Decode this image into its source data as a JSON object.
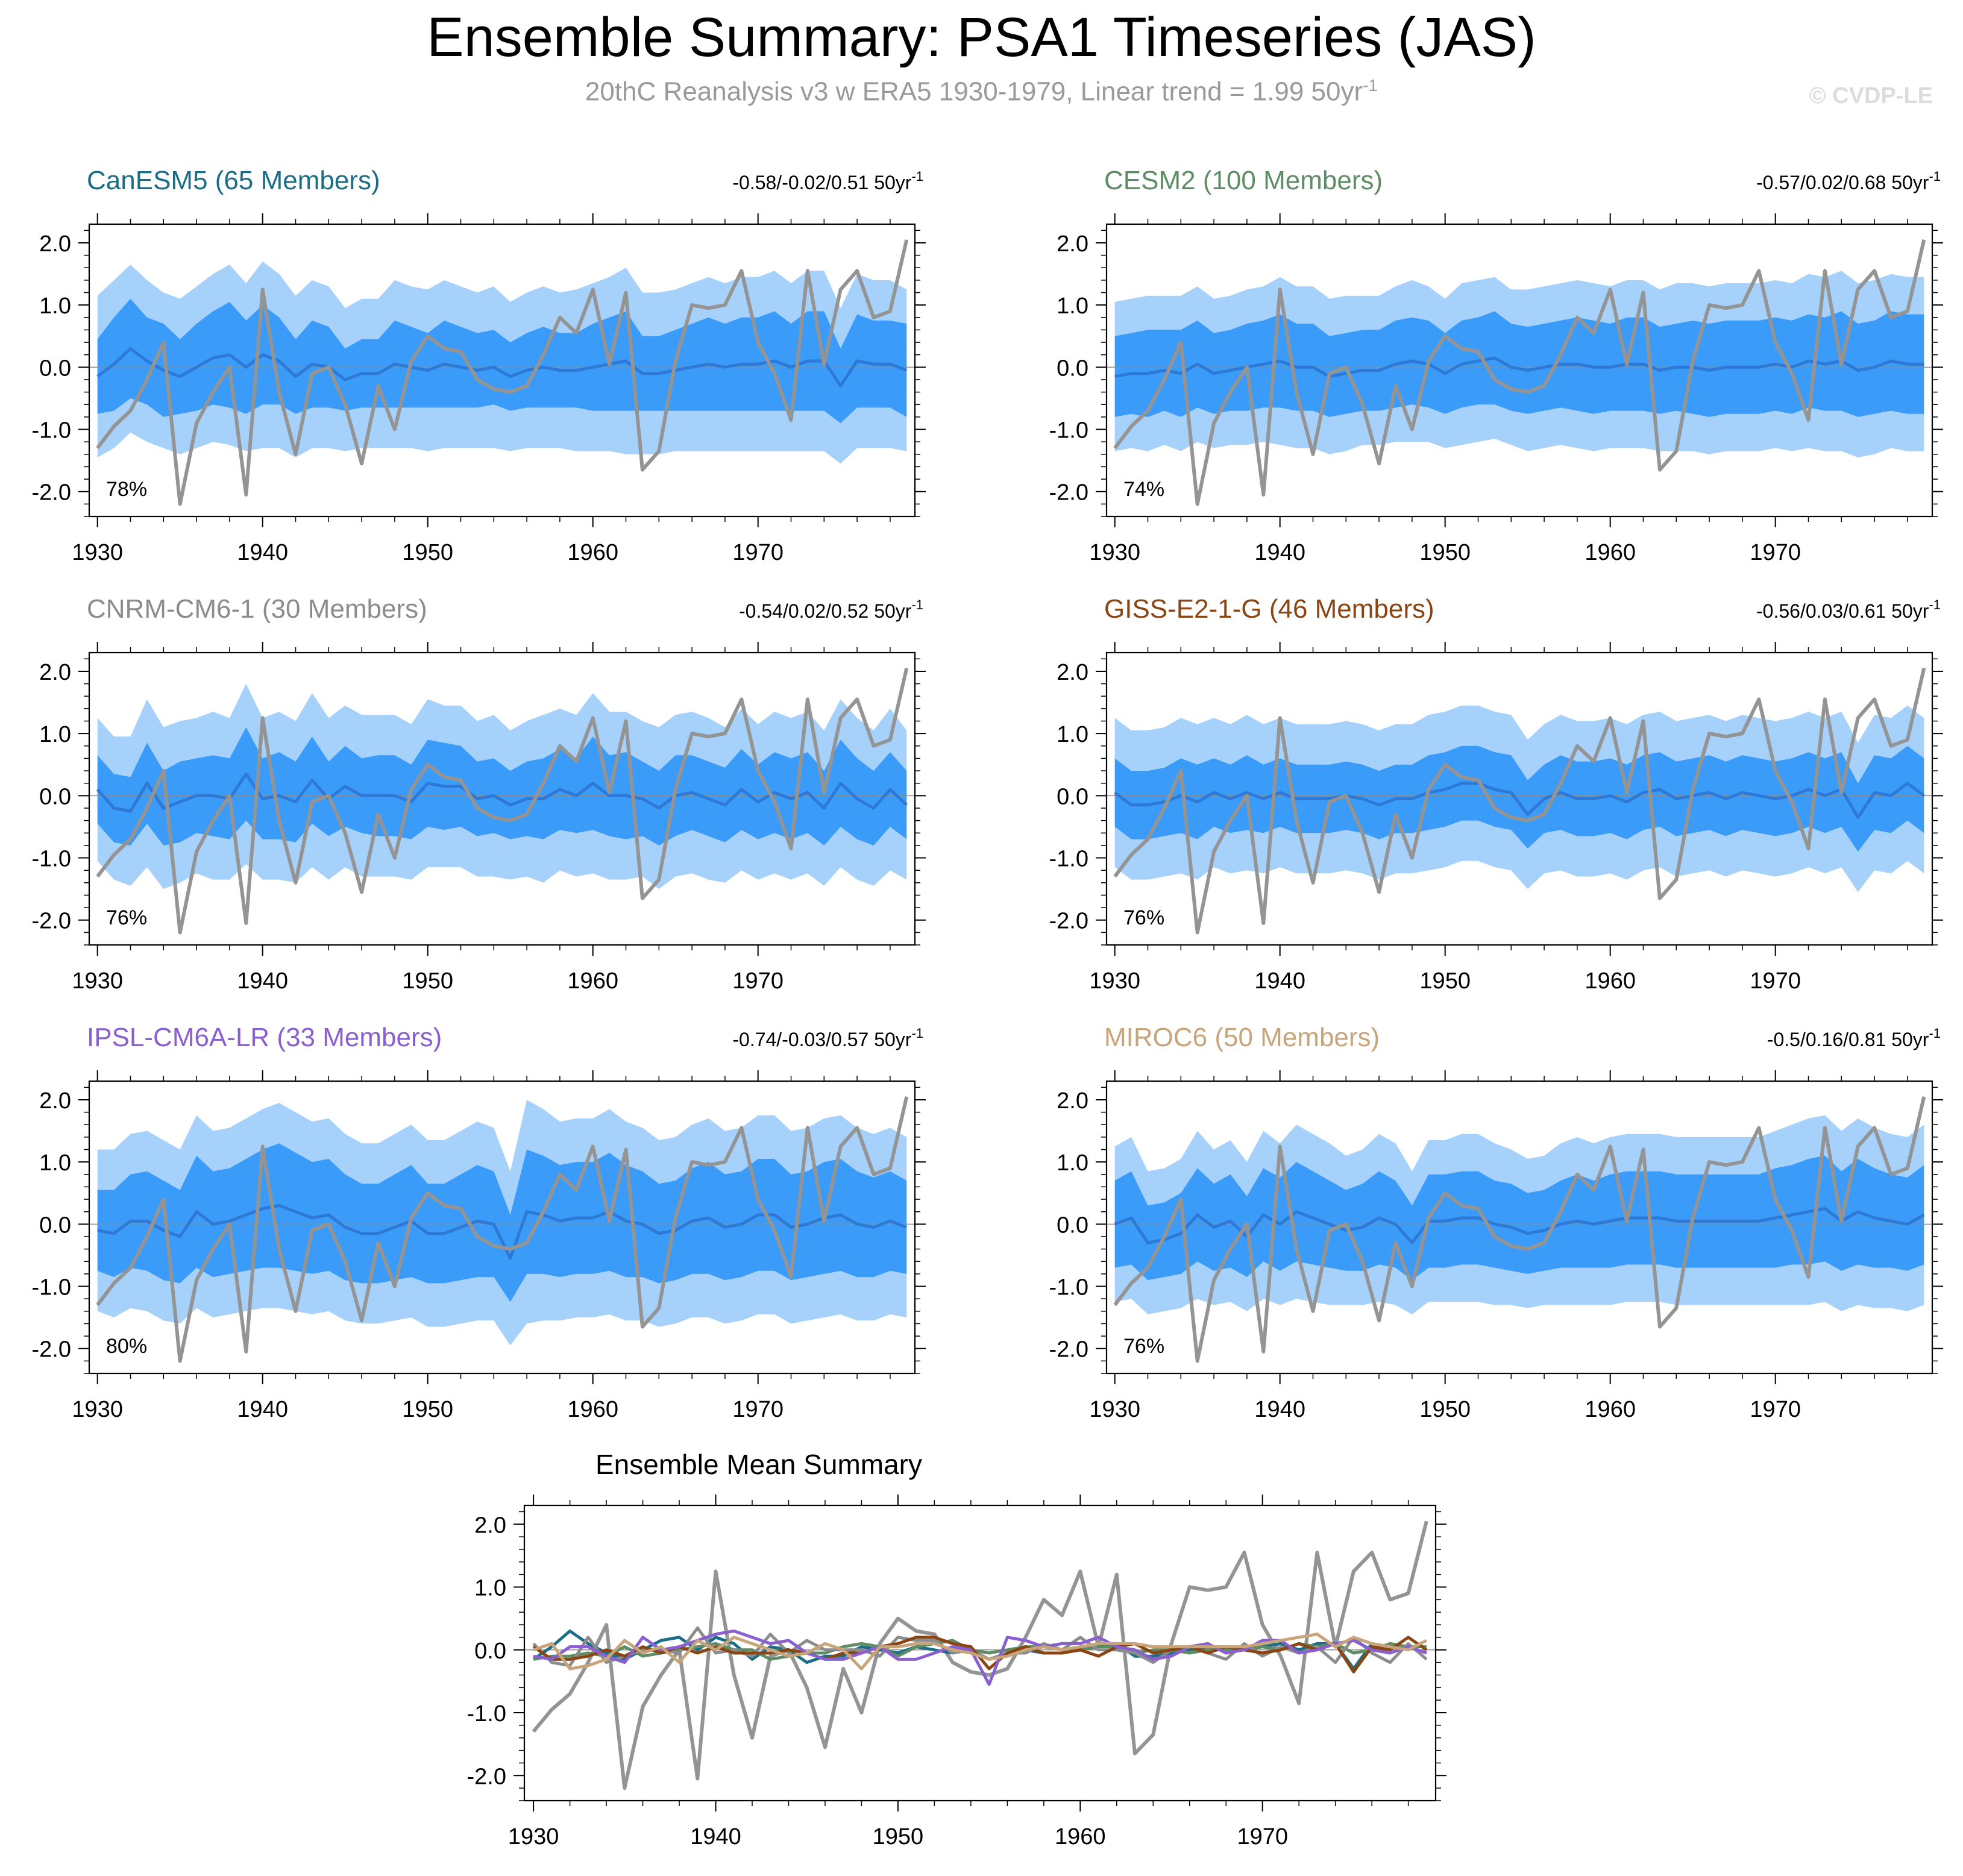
{
  "title": "Ensemble Summary: PSA1 Timeseries (JAS)",
  "subtitle_prefix": "20thC Reanalysis v3 w ERA5 1930-1979, Linear trend = 1.99 50yr",
  "subtitle_sup": "-1",
  "copyright": "© CVDP-LE",
  "colors": {
    "band_outer": "#a6d1fb",
    "band_inner": "#3a9bf8",
    "ens_mean": "#2e78d6",
    "observed": "#949494",
    "zero_line": "#8c8c8c"
  },
  "chart_data": {
    "type": "line",
    "x": [
      1930,
      1931,
      1932,
      1933,
      1934,
      1935,
      1936,
      1937,
      1938,
      1939,
      1940,
      1941,
      1942,
      1943,
      1944,
      1945,
      1946,
      1947,
      1948,
      1949,
      1950,
      1951,
      1952,
      1953,
      1954,
      1955,
      1956,
      1957,
      1958,
      1959,
      1960,
      1961,
      1962,
      1963,
      1964,
      1965,
      1966,
      1967,
      1968,
      1969,
      1970,
      1971,
      1972,
      1973,
      1974,
      1975,
      1976,
      1977,
      1978,
      1979
    ],
    "xlim": [
      1929.5,
      1979.5
    ],
    "ylim": [
      -2.4,
      2.3
    ],
    "xticks": [
      1930,
      1940,
      1950,
      1960,
      1970
    ],
    "xtick_labels": [
      "1930",
      "1940",
      "1950",
      "1960",
      "1970"
    ],
    "yticks": [
      -2,
      -1,
      0,
      1,
      2
    ],
    "ytick_labels": [
      "-2.0",
      "-1.0",
      "0.0",
      "1.0",
      "2.0"
    ],
    "observed": {
      "name": "20thC Reanalysis v3 w ERA5",
      "values": [
        -1.3,
        -0.95,
        -0.7,
        -0.2,
        0.4,
        -2.2,
        -0.9,
        -0.4,
        0.0,
        -2.05,
        1.25,
        -0.4,
        -1.4,
        -0.1,
        0.0,
        -0.6,
        -1.55,
        -0.3,
        -1.0,
        0.1,
        0.5,
        0.3,
        0.25,
        -0.2,
        -0.35,
        -0.4,
        -0.3,
        0.2,
        0.8,
        0.55,
        1.25,
        0.05,
        1.2,
        -1.65,
        -1.35,
        0.1,
        1.0,
        0.95,
        1.0,
        1.55,
        0.4,
        -0.1,
        -0.85,
        1.55,
        0.05,
        1.25,
        1.55,
        0.8,
        0.9,
        2.05
      ]
    },
    "panels": [
      {
        "name": "CanESM5 (65 Members)",
        "color": "#1c6e86",
        "trend": "-0.58/-0.02/0.51 50yr",
        "trend_sup": "-1",
        "pct": "78%",
        "mean": [
          -0.15,
          0.05,
          0.3,
          0.1,
          -0.05,
          -0.15,
          0.0,
          0.15,
          0.2,
          0.0,
          0.2,
          0.1,
          -0.15,
          0.05,
          0.0,
          -0.2,
          -0.1,
          -0.1,
          0.05,
          0.0,
          -0.05,
          0.05,
          0.0,
          -0.05,
          0.0,
          -0.15,
          -0.05,
          0.0,
          -0.05,
          -0.05,
          0.0,
          0.05,
          0.1,
          -0.1,
          -0.1,
          -0.05,
          0.0,
          0.05,
          0.0,
          0.05,
          0.05,
          0.1,
          0.0,
          0.1,
          0.1,
          -0.3,
          0.1,
          0.05,
          0.05,
          -0.05
        ],
        "inner": [
          0.6,
          0.75,
          0.8,
          0.7,
          0.75,
          0.6,
          0.7,
          0.75,
          0.85,
          0.75,
          0.8,
          0.7,
          0.6,
          0.7,
          0.65,
          0.5,
          0.55,
          0.55,
          0.7,
          0.65,
          0.6,
          0.7,
          0.65,
          0.6,
          0.6,
          0.55,
          0.6,
          0.65,
          0.6,
          0.6,
          0.7,
          0.75,
          0.8,
          0.6,
          0.6,
          0.65,
          0.7,
          0.75,
          0.7,
          0.75,
          0.75,
          0.8,
          0.7,
          0.8,
          0.8,
          0.6,
          0.75,
          0.7,
          0.7,
          0.75
        ],
        "outer": [
          1.3,
          1.35,
          1.35,
          1.3,
          1.25,
          1.25,
          1.3,
          1.35,
          1.45,
          1.35,
          1.5,
          1.4,
          1.3,
          1.35,
          1.3,
          1.15,
          1.2,
          1.2,
          1.35,
          1.3,
          1.3,
          1.35,
          1.3,
          1.25,
          1.3,
          1.2,
          1.25,
          1.3,
          1.25,
          1.3,
          1.35,
          1.4,
          1.5,
          1.3,
          1.3,
          1.3,
          1.35,
          1.4,
          1.35,
          1.4,
          1.4,
          1.45,
          1.35,
          1.45,
          1.45,
          1.25,
          1.4,
          1.35,
          1.35,
          1.3
        ]
      },
      {
        "name": "CESM2 (100 Members)",
        "color": "#5e8c64",
        "trend": "-0.57/0.02/0.68 50yr",
        "trend_sup": "-1",
        "pct": "74%",
        "mean": [
          -0.15,
          -0.1,
          -0.1,
          -0.05,
          -0.1,
          0.05,
          -0.1,
          -0.05,
          0.0,
          0.05,
          0.1,
          0.0,
          0.0,
          -0.15,
          -0.1,
          -0.05,
          -0.05,
          0.05,
          0.1,
          0.05,
          -0.1,
          0.05,
          0.1,
          0.15,
          0.0,
          -0.05,
          0.0,
          0.05,
          0.05,
          0.0,
          0.0,
          0.05,
          0.05,
          -0.05,
          0.0,
          0.0,
          -0.05,
          0.0,
          0.0,
          0.0,
          0.05,
          0.0,
          0.1,
          0.05,
          0.1,
          -0.05,
          0.0,
          0.1,
          0.05,
          0.05
        ],
        "inner": [
          0.65,
          0.65,
          0.7,
          0.65,
          0.7,
          0.7,
          0.65,
          0.65,
          0.7,
          0.7,
          0.75,
          0.7,
          0.7,
          0.65,
          0.65,
          0.65,
          0.65,
          0.7,
          0.7,
          0.7,
          0.65,
          0.7,
          0.7,
          0.75,
          0.7,
          0.7,
          0.7,
          0.7,
          0.75,
          0.75,
          0.7,
          0.75,
          0.75,
          0.7,
          0.7,
          0.75,
          0.75,
          0.75,
          0.75,
          0.75,
          0.75,
          0.75,
          0.75,
          0.75,
          0.8,
          0.75,
          0.75,
          0.8,
          0.8,
          0.8
        ],
        "outer": [
          1.2,
          1.2,
          1.25,
          1.2,
          1.25,
          1.25,
          1.2,
          1.2,
          1.25,
          1.25,
          1.35,
          1.3,
          1.3,
          1.25,
          1.25,
          1.2,
          1.2,
          1.25,
          1.3,
          1.25,
          1.2,
          1.3,
          1.3,
          1.3,
          1.25,
          1.3,
          1.3,
          1.3,
          1.35,
          1.35,
          1.3,
          1.35,
          1.35,
          1.3,
          1.35,
          1.35,
          1.35,
          1.35,
          1.35,
          1.35,
          1.35,
          1.35,
          1.4,
          1.4,
          1.45,
          1.4,
          1.4,
          1.4,
          1.4,
          1.4
        ]
      },
      {
        "name": "CNRM-CM6-1 (30 Members)",
        "color": "#8c8c8c",
        "trend": "-0.54/0.02/0.52 50yr",
        "trend_sup": "-1",
        "pct": "76%",
        "mean": [
          0.1,
          -0.2,
          -0.25,
          0.2,
          -0.2,
          -0.1,
          0.0,
          0.0,
          -0.05,
          0.35,
          -0.05,
          0.0,
          -0.1,
          0.25,
          -0.05,
          0.15,
          0.0,
          0.0,
          0.0,
          -0.1,
          0.2,
          0.15,
          0.15,
          -0.05,
          0.0,
          -0.15,
          -0.05,
          -0.05,
          0.1,
          0.0,
          0.2,
          0.0,
          0.0,
          -0.05,
          -0.2,
          0.0,
          0.05,
          -0.05,
          -0.15,
          0.1,
          -0.1,
          0.05,
          -0.05,
          0.05,
          -0.2,
          0.2,
          -0.05,
          -0.2,
          0.1,
          -0.15
        ],
        "inner": [
          0.55,
          0.55,
          0.55,
          0.65,
          0.6,
          0.65,
          0.6,
          0.65,
          0.65,
          0.75,
          0.65,
          0.7,
          0.65,
          0.7,
          0.6,
          0.65,
          0.6,
          0.65,
          0.65,
          0.6,
          0.7,
          0.7,
          0.65,
          0.6,
          0.6,
          0.55,
          0.6,
          0.65,
          0.65,
          0.6,
          0.75,
          0.65,
          0.7,
          0.6,
          0.6,
          0.65,
          0.6,
          0.6,
          0.6,
          0.65,
          0.6,
          0.65,
          0.65,
          0.65,
          0.6,
          0.7,
          0.65,
          0.6,
          0.6,
          0.55
        ],
        "outer": [
          1.15,
          1.15,
          1.2,
          1.35,
          1.3,
          1.3,
          1.25,
          1.35,
          1.3,
          1.45,
          1.3,
          1.35,
          1.3,
          1.4,
          1.3,
          1.3,
          1.3,
          1.3,
          1.3,
          1.25,
          1.35,
          1.3,
          1.3,
          1.25,
          1.3,
          1.2,
          1.25,
          1.35,
          1.3,
          1.3,
          1.45,
          1.35,
          1.35,
          1.25,
          1.3,
          1.3,
          1.3,
          1.3,
          1.25,
          1.3,
          1.25,
          1.3,
          1.3,
          1.3,
          1.25,
          1.35,
          1.3,
          1.25,
          1.3,
          1.2
        ]
      },
      {
        "name": "GISS-E2-1-G (46 Members)",
        "color": "#8b4513",
        "trend": "-0.56/0.03/0.61 50yr",
        "trend_sup": "-1",
        "pct": "76%",
        "mean": [
          0.05,
          -0.15,
          -0.15,
          -0.1,
          0.0,
          -0.1,
          0.05,
          -0.05,
          0.05,
          -0.05,
          0.05,
          -0.05,
          -0.05,
          -0.05,
          0.0,
          -0.05,
          -0.15,
          -0.05,
          -0.05,
          0.05,
          0.1,
          0.2,
          0.2,
          0.1,
          0.05,
          -0.3,
          -0.05,
          0.05,
          -0.05,
          -0.05,
          0.0,
          -0.1,
          0.05,
          0.1,
          -0.05,
          0.0,
          0.05,
          -0.05,
          0.05,
          0.0,
          -0.05,
          0.0,
          0.1,
          0.0,
          0.1,
          -0.35,
          0.05,
          0.0,
          0.2,
          0.0
        ],
        "inner": [
          0.55,
          0.55,
          0.55,
          0.55,
          0.6,
          0.6,
          0.55,
          0.55,
          0.6,
          0.55,
          0.55,
          0.55,
          0.55,
          0.55,
          0.55,
          0.55,
          0.55,
          0.55,
          0.55,
          0.6,
          0.6,
          0.6,
          0.6,
          0.6,
          0.6,
          0.55,
          0.55,
          0.6,
          0.6,
          0.6,
          0.6,
          0.6,
          0.6,
          0.6,
          0.6,
          0.6,
          0.6,
          0.6,
          0.6,
          0.6,
          0.6,
          0.6,
          0.6,
          0.6,
          0.6,
          0.55,
          0.6,
          0.6,
          0.6,
          0.6
        ],
        "outer": [
          1.2,
          1.2,
          1.2,
          1.2,
          1.25,
          1.25,
          1.2,
          1.2,
          1.25,
          1.2,
          1.2,
          1.2,
          1.2,
          1.2,
          1.2,
          1.2,
          1.2,
          1.2,
          1.2,
          1.25,
          1.25,
          1.25,
          1.25,
          1.25,
          1.25,
          1.2,
          1.2,
          1.25,
          1.25,
          1.25,
          1.25,
          1.25,
          1.25,
          1.25,
          1.25,
          1.25,
          1.25,
          1.25,
          1.25,
          1.25,
          1.25,
          1.25,
          1.25,
          1.25,
          1.25,
          1.2,
          1.25,
          1.25,
          1.25,
          1.25
        ]
      },
      {
        "name": "IPSL-CM6A-LR (33 Members)",
        "color": "#8a5fd0",
        "trend": "-0.74/-0.03/0.57 50yr",
        "trend_sup": "-1",
        "pct": "80%",
        "mean": [
          -0.1,
          -0.15,
          0.05,
          0.05,
          -0.1,
          -0.2,
          0.2,
          0.0,
          0.05,
          0.15,
          0.25,
          0.3,
          0.2,
          0.1,
          0.15,
          -0.05,
          -0.15,
          -0.15,
          -0.05,
          0.05,
          -0.15,
          -0.15,
          -0.05,
          0.05,
          0.0,
          -0.55,
          0.2,
          0.15,
          0.05,
          0.1,
          0.1,
          0.2,
          0.05,
          0.0,
          -0.15,
          -0.1,
          0.05,
          0.1,
          -0.05,
          0.0,
          0.15,
          0.15,
          -0.05,
          0.0,
          0.1,
          0.15,
          0.0,
          -0.05,
          0.05,
          -0.05
        ],
        "inner": [
          0.65,
          0.7,
          0.75,
          0.8,
          0.8,
          0.75,
          0.9,
          0.85,
          0.85,
          0.9,
          0.95,
          1.0,
          0.95,
          0.9,
          0.9,
          0.85,
          0.8,
          0.8,
          0.85,
          0.9,
          0.8,
          0.8,
          0.85,
          0.9,
          0.85,
          0.7,
          1.0,
          0.95,
          0.9,
          0.9,
          0.9,
          0.95,
          0.9,
          0.85,
          0.8,
          0.8,
          0.85,
          0.9,
          0.85,
          0.85,
          0.9,
          0.9,
          0.85,
          0.85,
          0.9,
          0.9,
          0.85,
          0.8,
          0.8,
          0.75
        ],
        "outer": [
          1.3,
          1.35,
          1.4,
          1.45,
          1.45,
          1.4,
          1.55,
          1.5,
          1.5,
          1.55,
          1.6,
          1.65,
          1.6,
          1.55,
          1.55,
          1.5,
          1.45,
          1.45,
          1.5,
          1.55,
          1.5,
          1.5,
          1.55,
          1.6,
          1.55,
          1.4,
          1.8,
          1.7,
          1.6,
          1.6,
          1.6,
          1.65,
          1.6,
          1.55,
          1.5,
          1.5,
          1.55,
          1.6,
          1.55,
          1.55,
          1.6,
          1.6,
          1.55,
          1.55,
          1.6,
          1.6,
          1.55,
          1.5,
          1.5,
          1.45
        ]
      },
      {
        "name": "MIROC6 (50 Members)",
        "color": "#c8a47a",
        "trend": "-0.5/0.16/0.81 50yr",
        "trend_sup": "-1",
        "pct": "76%",
        "mean": [
          0.0,
          0.1,
          -0.3,
          -0.25,
          -0.15,
          0.15,
          -0.05,
          0.05,
          -0.2,
          0.15,
          0.0,
          0.2,
          0.1,
          0.0,
          -0.1,
          -0.05,
          0.1,
          0.0,
          -0.3,
          0.05,
          0.05,
          0.1,
          0.1,
          0.0,
          -0.05,
          -0.15,
          -0.1,
          0.0,
          0.05,
          0.0,
          0.05,
          0.1,
          0.1,
          0.1,
          0.05,
          0.05,
          0.05,
          0.05,
          0.05,
          0.05,
          0.1,
          0.15,
          0.2,
          0.25,
          0.05,
          0.2,
          0.1,
          0.05,
          0.0,
          0.15
        ],
        "inner": [
          0.7,
          0.75,
          0.6,
          0.6,
          0.65,
          0.75,
          0.7,
          0.75,
          0.65,
          0.75,
          0.75,
          0.8,
          0.75,
          0.7,
          0.65,
          0.7,
          0.75,
          0.7,
          0.6,
          0.75,
          0.75,
          0.75,
          0.75,
          0.7,
          0.7,
          0.65,
          0.65,
          0.7,
          0.75,
          0.7,
          0.75,
          0.75,
          0.75,
          0.75,
          0.75,
          0.75,
          0.75,
          0.75,
          0.75,
          0.75,
          0.8,
          0.8,
          0.85,
          0.85,
          0.8,
          0.85,
          0.8,
          0.75,
          0.75,
          0.8
        ],
        "outer": [
          1.25,
          1.3,
          1.15,
          1.15,
          1.2,
          1.35,
          1.25,
          1.3,
          1.2,
          1.35,
          1.3,
          1.4,
          1.35,
          1.3,
          1.2,
          1.25,
          1.35,
          1.3,
          1.15,
          1.3,
          1.3,
          1.35,
          1.35,
          1.3,
          1.25,
          1.2,
          1.2,
          1.3,
          1.35,
          1.3,
          1.35,
          1.35,
          1.35,
          1.35,
          1.35,
          1.35,
          1.35,
          1.35,
          1.35,
          1.35,
          1.4,
          1.45,
          1.5,
          1.5,
          1.45,
          1.5,
          1.45,
          1.4,
          1.4,
          1.45
        ]
      }
    ],
    "summary": {
      "title": "Ensemble Mean Summary"
    }
  }
}
